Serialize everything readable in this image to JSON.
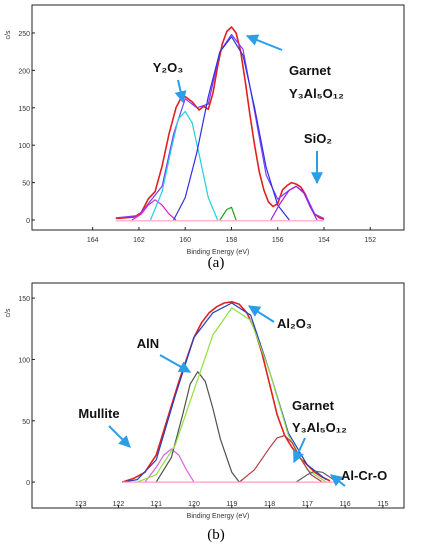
{
  "chart_data": [
    {
      "type": "line",
      "panel": "a",
      "xlabel": "Binding Energy (eV)",
      "ylabel": "c/s",
      "xlim": [
        165.5,
        150.8
      ],
      "ylim": [
        -8,
        270
      ],
      "x_reversed": true,
      "xticks": [
        164,
        162,
        160,
        158,
        156,
        154,
        152
      ],
      "yticks": [
        0,
        50,
        100,
        150,
        200,
        250
      ],
      "grid": false,
      "legend": "none",
      "series": [
        {
          "color": "#e02020",
          "x": [
            163.0,
            162.6,
            162.2,
            161.9,
            161.6,
            161.3,
            161.0,
            160.7,
            160.4,
            160.2,
            160.0,
            159.7,
            159.4,
            159.2,
            159.0,
            158.8,
            158.6,
            158.4,
            158.2,
            158.0,
            157.8,
            157.6,
            157.4,
            157.2,
            157.0,
            156.8,
            156.6,
            156.4,
            156.2,
            156.0,
            155.8,
            155.6,
            155.4,
            155.2,
            155.0,
            154.8,
            154.6,
            154.4,
            154.2,
            154.0
          ],
          "y": [
            2,
            3,
            4,
            10,
            28,
            38,
            72,
            115,
            150,
            162,
            165,
            158,
            147,
            152,
            148,
            170,
            205,
            235,
            252,
            258,
            250,
            225,
            185,
            140,
            100,
            65,
            40,
            24,
            18,
            22,
            40,
            46,
            50,
            48,
            44,
            34,
            18,
            8,
            3,
            1
          ]
        },
        {
          "color": "#7d3cff",
          "x": [
            163.0,
            162.0,
            161.0,
            160.5,
            160.0,
            159.5,
            159.0,
            158.5,
            158.0,
            157.5,
            157.0,
            156.5,
            156.0,
            155.5,
            155.2,
            154.8,
            154.4,
            154.0
          ],
          "y": [
            3,
            6,
            45,
            115,
            162,
            150,
            155,
            225,
            248,
            228,
            145,
            60,
            28,
            40,
            45,
            34,
            8,
            2
          ]
        },
        {
          "color": "#e020e0",
          "x": [
            162.3,
            161.9,
            161.6,
            161.3,
            161.0,
            160.7,
            160.4
          ],
          "y": [
            0,
            8,
            20,
            27,
            20,
            8,
            0
          ]
        },
        {
          "color": "#20d0e0",
          "x": [
            161.5,
            161.0,
            160.6,
            160.3,
            160.0,
            159.7,
            159.4,
            159.0,
            158.6
          ],
          "y": [
            0,
            38,
            95,
            135,
            145,
            130,
            88,
            30,
            0
          ]
        },
        {
          "color": "#3030e0",
          "x": [
            160.5,
            160.0,
            159.5,
            159.0,
            158.5,
            158.0,
            157.5,
            157.0,
            156.5,
            156.0,
            155.5
          ],
          "y": [
            0,
            30,
            90,
            165,
            225,
            245,
            220,
            150,
            70,
            20,
            0
          ]
        },
        {
          "color": "#20a020",
          "x": [
            158.5,
            158.2,
            158.0,
            157.8
          ],
          "y": [
            0,
            14,
            17,
            0
          ]
        },
        {
          "color": "#a020e0",
          "x": [
            156.3,
            155.9,
            155.5,
            155.2,
            154.9,
            154.6,
            154.3
          ],
          "y": [
            0,
            22,
            40,
            45,
            38,
            18,
            0
          ]
        },
        {
          "color": "#ff9fbf",
          "x": [
            163.0,
            154.0
          ],
          "y": [
            -1,
            -1
          ]
        }
      ],
      "annotations": [
        {
          "text": "Y₂O₃",
          "target_x": 160.2,
          "target_y": 150
        },
        {
          "text": "Garnet",
          "text2": "Y₃Al₅O₁₂",
          "target_x": 157.7,
          "target_y": 245
        },
        {
          "text": "SiO₂",
          "target_x": 155.3,
          "target_y": 50
        }
      ],
      "caption": "(a)"
    },
    {
      "type": "line",
      "panel": "b",
      "xlabel": "Binding Energy (eV)",
      "ylabel": "c/s",
      "xlim": [
        123.6,
        114.6
      ],
      "ylim": [
        -4,
        155
      ],
      "x_reversed": true,
      "xticks": [
        123,
        122,
        121,
        120,
        119,
        118,
        117,
        116,
        115
      ],
      "yticks": [
        0,
        50,
        100,
        150
      ],
      "grid": false,
      "legend": "none",
      "series": [
        {
          "color": "#e02020",
          "x": [
            121.9,
            121.6,
            121.3,
            121.0,
            120.8,
            120.6,
            120.4,
            120.2,
            120.0,
            119.8,
            119.6,
            119.4,
            119.2,
            119.0,
            118.8,
            118.6,
            118.4,
            118.2,
            118.0,
            117.8,
            117.6,
            117.4,
            117.2,
            117.0,
            116.8,
            116.6,
            116.4
          ],
          "y": [
            0,
            3,
            8,
            22,
            42,
            62,
            82,
            100,
            118,
            130,
            138,
            143,
            146,
            147,
            145,
            138,
            125,
            105,
            80,
            55,
            38,
            28,
            20,
            14,
            8,
            4,
            1
          ]
        },
        {
          "color": "#2040c0",
          "x": [
            121.9,
            121.5,
            121.0,
            120.5,
            120.0,
            119.5,
            119.0,
            118.5,
            118.0,
            117.5,
            117.0,
            116.5
          ],
          "y": [
            0,
            2,
            18,
            70,
            118,
            138,
            146,
            136,
            90,
            40,
            14,
            2
          ]
        },
        {
          "color": "#e060e0",
          "x": [
            121.3,
            121.0,
            120.8,
            120.6,
            120.4,
            120.2,
            120.0
          ],
          "y": [
            0,
            12,
            22,
            27,
            22,
            10,
            0
          ]
        },
        {
          "color": "#505050",
          "x": [
            121.0,
            120.6,
            120.3,
            120.1,
            119.9,
            119.7,
            119.5,
            119.3,
            119.0,
            118.8
          ],
          "y": [
            0,
            20,
            55,
            80,
            90,
            82,
            60,
            35,
            8,
            0
          ]
        },
        {
          "color": "#90e040",
          "x": [
            121.5,
            121.0,
            120.5,
            120.0,
            119.5,
            119.0,
            118.5,
            118.0,
            117.5,
            117.0,
            116.5
          ],
          "y": [
            0,
            6,
            30,
            75,
            120,
            142,
            132,
            90,
            38,
            10,
            0
          ]
        },
        {
          "color": "#b04040",
          "x": [
            118.8,
            118.4,
            118.0,
            117.8,
            117.6,
            117.4,
            117.2,
            116.9,
            116.6
          ],
          "y": [
            0,
            10,
            28,
            36,
            38,
            32,
            20,
            6,
            0
          ]
        },
        {
          "color": "#606060",
          "x": [
            117.3,
            117.0,
            116.8,
            116.6,
            116.4,
            116.2
          ],
          "y": [
            0,
            6,
            9,
            8,
            4,
            0
          ]
        },
        {
          "color": "#ff9fbf",
          "x": [
            121.9,
            116.2
          ],
          "y": [
            0,
            0
          ]
        }
      ],
      "annotations": [
        {
          "text": "AlN",
          "target_x": 119.9,
          "target_y": 90
        },
        {
          "text": "Al₂O₃",
          "target_x": 118.9,
          "target_y": 145
        },
        {
          "text": "Mullite",
          "target_x": 120.7,
          "target_y": 28
        },
        {
          "text": "Garnet",
          "text2": "Y₃Al₅O₁₂",
          "target_x": 117.7,
          "target_y": 38
        },
        {
          "text": "Al-Cr-O",
          "target_x": 116.9,
          "target_y": 8
        }
      ],
      "caption": "(b)"
    }
  ]
}
